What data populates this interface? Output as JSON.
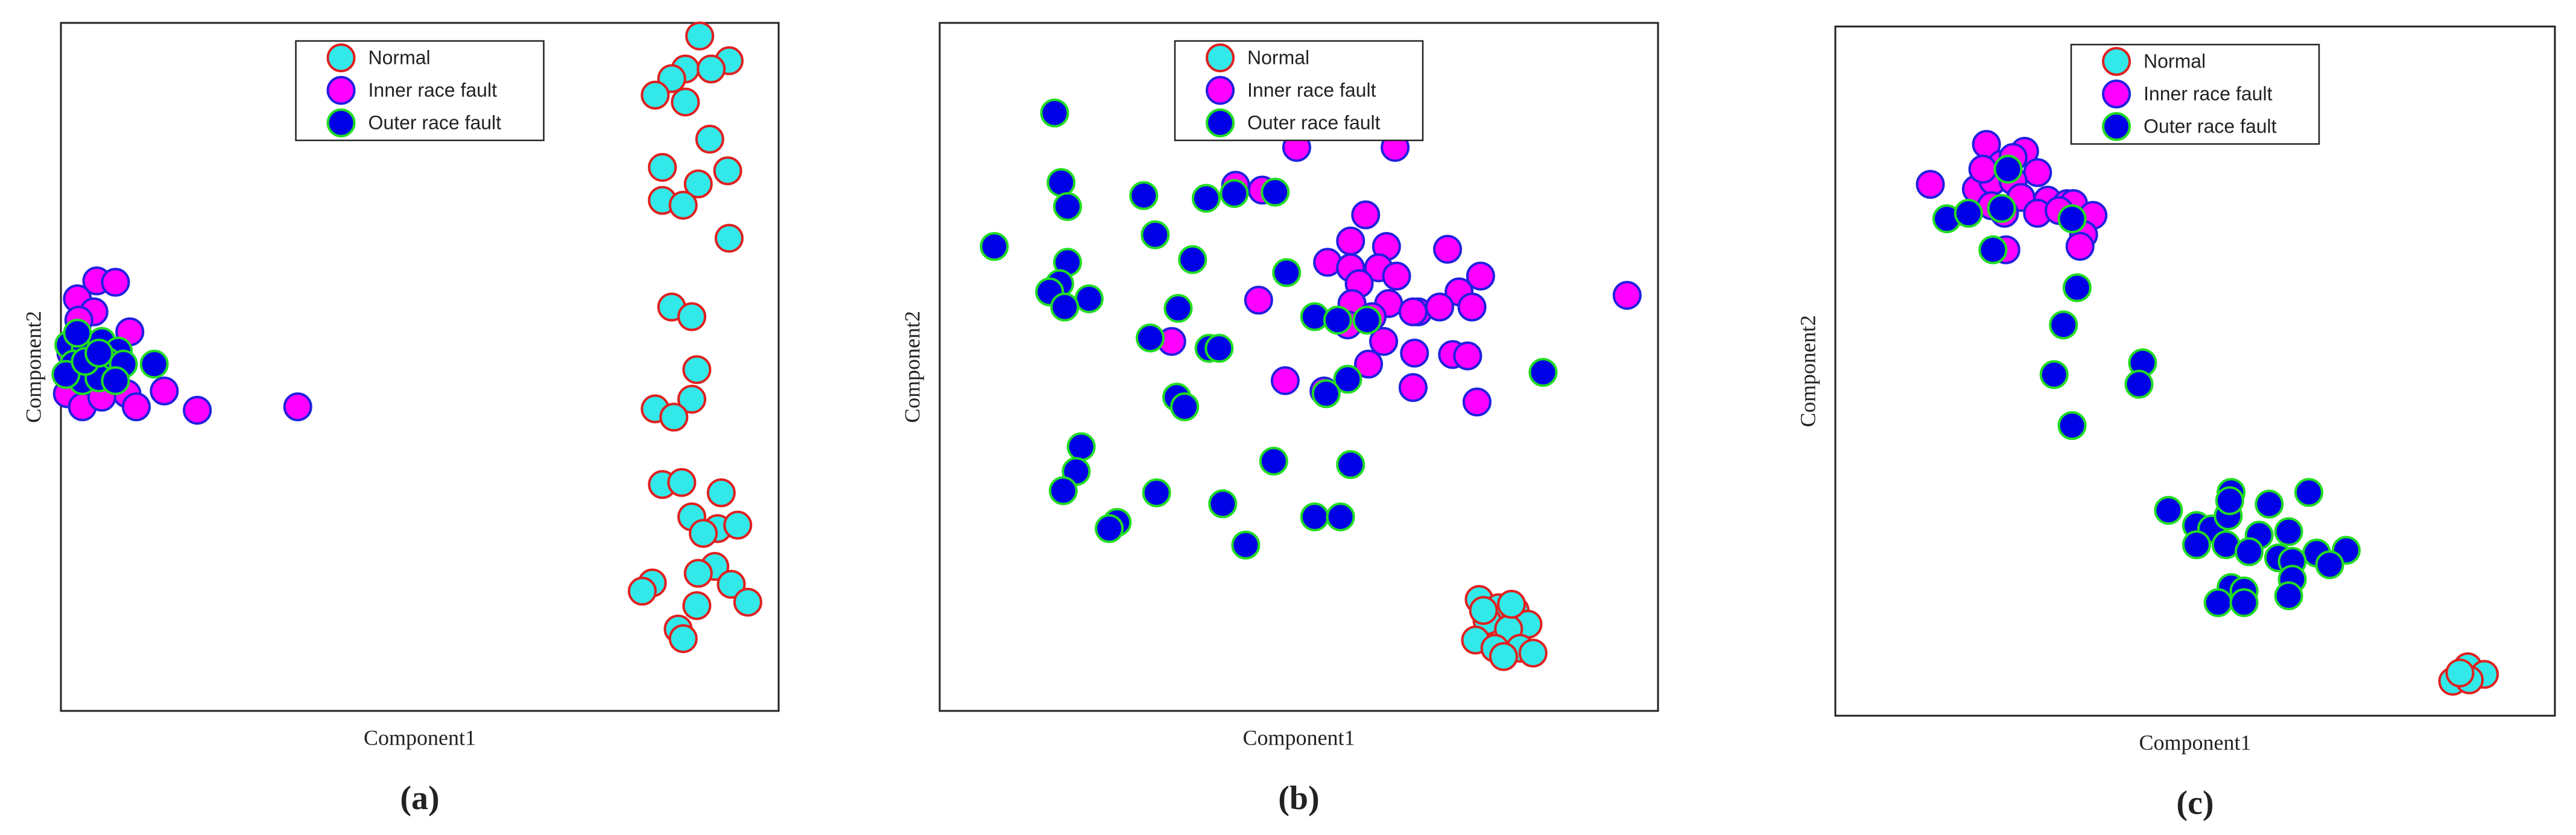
{
  "chart_data": [
    {
      "type": "scatter",
      "caption": "(a)",
      "xlabel": "Component1",
      "ylabel": "Component2",
      "xlim": [
        0,
        100
      ],
      "ylim": [
        0,
        100
      ],
      "legend": "upper center",
      "series": [
        {
          "name": "Normal",
          "color": "#33e8e8",
          "edgecolor": "#e02020",
          "x": [
            89.0,
            93.1,
            87.0,
            90.6,
            85.1,
            82.8,
            87.0,
            90.4,
            83.8,
            92.9,
            88.8,
            83.8,
            86.7,
            93.1,
            85.1,
            87.9,
            88.6,
            82.8,
            87.9,
            85.4,
            83.8,
            86.5,
            92.0,
            87.9,
            91.5,
            89.5,
            94.3,
            91.1,
            82.4,
            88.8,
            93.4,
            81.0,
            95.7,
            88.6,
            86.0,
            86.7
          ],
          "values": [
            98.1,
            94.5,
            93.3,
            93.3,
            91.9,
            89.5,
            88.5,
            83.1,
            79.0,
            78.5,
            76.6,
            74.2,
            73.5,
            68.7,
            58.7,
            57.3,
            49.6,
            43.9,
            45.3,
            42.7,
            32.9,
            33.2,
            31.7,
            28.2,
            26.5,
            25.8,
            27.0,
            21.0,
            18.6,
            20.0,
            18.4,
            17.4,
            15.8,
            15.3,
            11.9,
            10.5
          ]
        },
        {
          "name": "Inner race fault",
          "color": "#ff00ff",
          "edgecolor": "#2020e0",
          "x": [
            5.0,
            7.6,
            2.3,
            4.6,
            9.6,
            1.4,
            7.6,
            0.9,
            3.0,
            9.2,
            10.5,
            14.4,
            19.0,
            33.0,
            5.7,
            2.5
          ],
          "values": [
            62.5,
            62.3,
            59.9,
            58.0,
            55.1,
            52.0,
            48.9,
            46.1,
            44.2,
            46.1,
            44.2,
            46.5,
            43.7,
            44.2,
            45.6,
            56.8
          ]
        },
        {
          "name": "Outer race fault",
          "color": "#0000e6",
          "edgecolor": "#22dd22",
          "x": [
            1.1,
            3.4,
            5.7,
            8.0,
            13.0,
            1.8,
            4.1,
            6.4,
            8.7,
            3.0,
            5.3,
            0.7,
            7.6,
            3.4,
            5.3,
            2.3
          ],
          "values": [
            53.2,
            52.7,
            53.7,
            52.3,
            50.4,
            50.4,
            49.6,
            50.8,
            50.4,
            48.0,
            48.4,
            48.9,
            48.0,
            50.8,
            52.0,
            54.9
          ]
        }
      ]
    },
    {
      "type": "scatter",
      "caption": "(b)",
      "xlabel": "Component1",
      "ylabel": "Component2",
      "xlim": [
        0,
        100
      ],
      "ylim": [
        0,
        100
      ],
      "legend": "upper center",
      "series": [
        {
          "name": "Normal",
          "color": "#33e8e8",
          "edgecolor": "#e02020",
          "x": [
            75.1,
            77.8,
            80.1,
            81.9,
            76.2,
            79.2,
            74.6,
            77.3,
            80.8,
            82.6,
            78.5,
            75.7,
            79.6
          ],
          "values": [
            16.2,
            15.0,
            14.6,
            12.6,
            13.1,
            11.9,
            10.3,
            9.1,
            9.1,
            8.4,
            7.9,
            14.6,
            15.5
          ]
        },
        {
          "name": "Inner race fault",
          "color": "#ff00ff",
          "edgecolor": "#2020e0",
          "x": [
            49.7,
            63.4,
            41.2,
            44.9,
            59.3,
            57.2,
            62.2,
            70.7,
            54.0,
            57.2,
            61.1,
            63.6,
            75.3,
            44.4,
            58.4,
            72.3,
            66.6,
            69.6,
            74.1,
            95.7,
            57.4,
            62.5,
            60.2,
            65.9,
            32.3,
            61.8,
            66.1,
            71.4,
            73.5,
            59.7,
            48.1,
            53.5,
            65.9,
            74.8,
            56.8
          ],
          "values": [
            81.9,
            81.9,
            76.4,
            75.7,
            72.1,
            68.3,
            67.5,
            67.1,
            65.2,
            64.4,
            64.4,
            63.2,
            63.2,
            59.7,
            62.1,
            60.9,
            58.0,
            58.7,
            58.7,
            60.4,
            59.2,
            59.2,
            57.3,
            58.0,
            53.7,
            53.7,
            52.0,
            51.8,
            51.6,
            50.4,
            48.0,
            46.5,
            47.0,
            44.9,
            56.1
          ]
        },
        {
          "name": "Outer race fault",
          "color": "#0000e6",
          "edgecolor": "#22dd22",
          "x": [
            16.0,
            16.9,
            17.8,
            7.6,
            28.4,
            37.1,
            41.0,
            46.7,
            30.0,
            35.2,
            17.8,
            48.3,
            16.7,
            15.3,
            20.8,
            17.4,
            33.2,
            52.2,
            55.4,
            59.5,
            29.3,
            37.5,
            38.9,
            84.0,
            56.8,
            53.8,
            33.0,
            34.1,
            19.7,
            19.0,
            57.2,
            46.5,
            17.2,
            30.2,
            39.4,
            24.7,
            23.6,
            52.2,
            55.8,
            42.6
          ],
          "values": [
            86.9,
            76.8,
            73.3,
            67.5,
            74.9,
            74.5,
            75.2,
            75.4,
            69.2,
            65.6,
            65.2,
            63.7,
            62.1,
            60.9,
            59.9,
            58.7,
            58.5,
            57.3,
            56.8,
            56.8,
            54.2,
            52.7,
            52.7,
            49.2,
            48.2,
            46.1,
            45.6,
            44.2,
            38.4,
            34.8,
            35.8,
            36.3,
            32.0,
            31.7,
            30.1,
            27.4,
            26.5,
            28.2,
            28.2,
            24.1
          ]
        }
      ]
    },
    {
      "type": "scatter",
      "caption": "(c)",
      "xlabel": "Component1",
      "ylabel": "Component2",
      "xlim": [
        0,
        100
      ],
      "ylim": [
        0,
        100
      ],
      "legend": "upper center",
      "series": [
        {
          "name": "Normal",
          "color": "#33e8e8",
          "edgecolor": "#e02020",
          "x": [
            87.9,
            90.2,
            85.8,
            88.1,
            86.8
          ],
          "values": [
            7.1,
            6.0,
            5.0,
            5.2,
            6.2
          ]
        },
        {
          "name": "Inner race fault",
          "color": "#ff00ff",
          "edgecolor": "#2020e0",
          "x": [
            21.0,
            26.3,
            23.1,
            13.2,
            19.6,
            28.1,
            21.9,
            24.7,
            25.8,
            29.5,
            32.2,
            33.1,
            35.8,
            21.7,
            23.5,
            28.1,
            31.1,
            34.5,
            34.0,
            23.7,
            24.7,
            20.5
          ],
          "values": [
            82.9,
            81.9,
            80.0,
            77.1,
            76.4,
            78.8,
            77.6,
            77.6,
            75.2,
            74.8,
            74.3,
            74.3,
            72.6,
            74.0,
            72.9,
            72.9,
            73.3,
            69.8,
            68.1,
            67.6,
            81.0,
            79.3
          ]
        },
        {
          "name": "Outer race fault",
          "color": "#0000e6",
          "edgecolor": "#22dd22",
          "x": [
            24.0,
            15.5,
            18.5,
            23.1,
            32.9,
            21.9,
            33.6,
            31.7,
            30.4,
            42.7,
            42.2,
            32.9,
            46.3,
            55.0,
            60.3,
            65.8,
            50.2,
            52.3,
            54.6,
            58.9,
            63.0,
            50.2,
            54.3,
            57.5,
            61.6,
            66.9,
            71.0,
            68.7,
            63.5,
            63.5,
            63.0,
            55.0,
            56.8,
            53.2,
            56.8,
            54.8
          ],
          "values": [
            79.3,
            72.1,
            72.9,
            73.6,
            72.1,
            67.6,
            62.1,
            56.7,
            49.5,
            51.2,
            48.1,
            42.1,
            29.8,
            32.4,
            30.7,
            32.4,
            27.6,
            27.1,
            29.0,
            26.2,
            26.7,
            24.8,
            24.8,
            23.8,
            22.9,
            23.6,
            24.0,
            21.9,
            22.4,
            19.8,
            17.4,
            18.6,
            18.1,
            16.4,
            16.4,
            31.2
          ]
        }
      ]
    }
  ]
}
